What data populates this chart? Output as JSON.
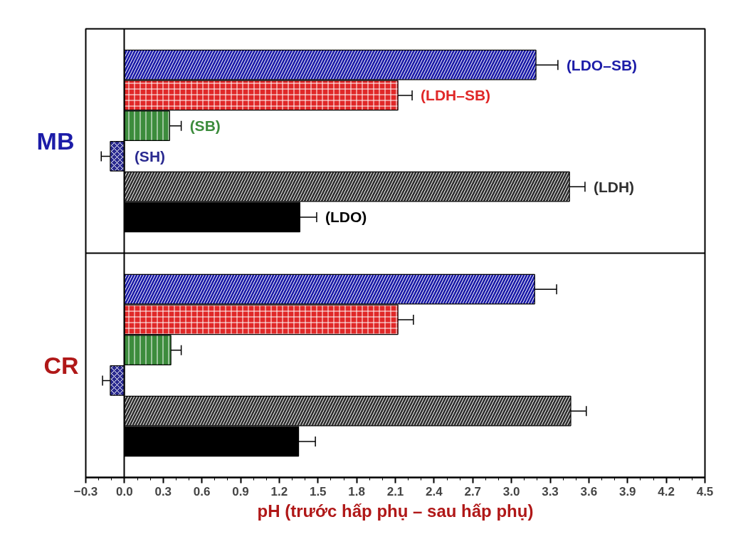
{
  "chart_data": {
    "type": "bar",
    "orientation": "horizontal",
    "xlabel": "pH (trước hấp phụ – sau hấp phụ)",
    "categories": [
      "MB",
      "CR"
    ],
    "series": [
      {
        "name": "(LDO–SB)",
        "color": "#1c1ca8",
        "values": [
          3.19,
          3.18
        ],
        "errors": [
          0.17,
          0.17
        ]
      },
      {
        "name": "(LDH–SB)",
        "color": "#e02828",
        "values": [
          2.12,
          2.12
        ],
        "errors": [
          0.11,
          0.12
        ]
      },
      {
        "name": "(SB)",
        "color": "#3c8c3c",
        "values": [
          0.35,
          0.36
        ],
        "errors": [
          0.09,
          0.08
        ]
      },
      {
        "name": "(SH)",
        "color": "#2a2a90",
        "values": [
          -0.11,
          -0.11
        ],
        "errors": [
          0.07,
          0.06
        ]
      },
      {
        "name": "(LDH)",
        "color": "#303030",
        "values": [
          3.45,
          3.46
        ],
        "errors": [
          0.12,
          0.12
        ]
      },
      {
        "name": "(LDO)",
        "color": "#000000",
        "values": [
          1.36,
          1.35
        ],
        "errors": [
          0.13,
          0.13
        ]
      }
    ],
    "xlim": [
      -0.3,
      4.5
    ],
    "xticks": [
      -0.3,
      {
        "value": 0,
        "label": "0.0"
      },
      0.3,
      0.6,
      0.9,
      1.2,
      1.5,
      1.8,
      2.1,
      2.4,
      2.7,
      {
        "value": 3,
        "label": "3.0"
      },
      3.3,
      3.6,
      3.9,
      4.2,
      4.5
    ],
    "grid": false
  }
}
